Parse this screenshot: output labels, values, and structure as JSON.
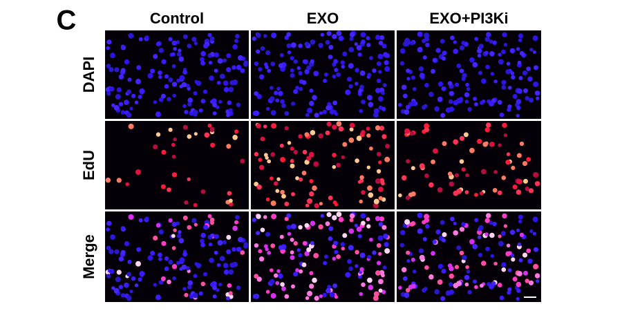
{
  "panel_label": "C",
  "columns": [
    "Control",
    "EXO",
    "EXO+PI3Ki"
  ],
  "rows": [
    "DAPI",
    "EdU",
    "Merge"
  ]
}
